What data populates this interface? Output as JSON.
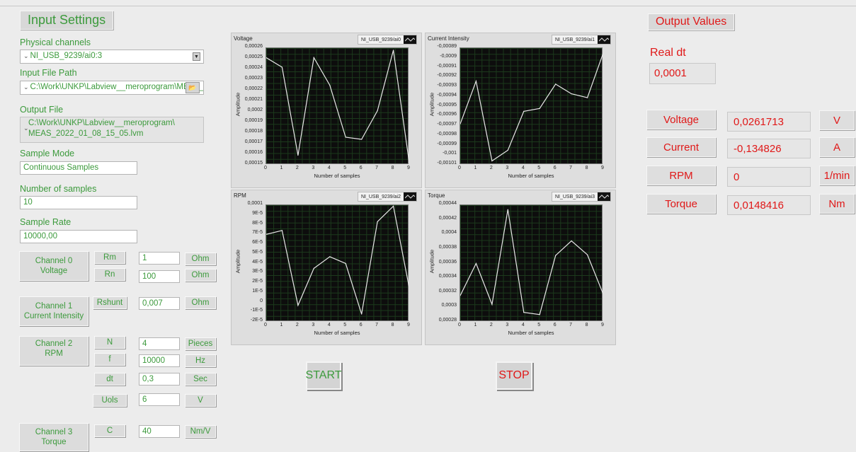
{
  "input": {
    "header": "Input Settings",
    "physical_channels_label": "Physical channels",
    "physical_channels_value": "NI_USB_9239/ai0:3",
    "input_file_path_label": "Input File Path",
    "input_file_path_value": "C:\\Work\\UNKP\\Labview__meroprogram\\MEAS_",
    "output_file_label": "Output File",
    "output_file_line1": "C:\\Work\\UNKP\\Labview__meroprogram\\",
    "output_file_line2": "MEAS_2022_01_08_15_05.lvm",
    "sample_mode_label": "Sample Mode",
    "sample_mode_value": "Continuous Samples",
    "num_samples_label": "Number of samples",
    "num_samples_value": "10",
    "sample_rate_label": "Sample Rate",
    "sample_rate_value": "10000,00"
  },
  "channels": {
    "ch0": {
      "label": "Channel 0\nVoltage",
      "rm": "Rm",
      "rm_value": "1",
      "rm_unit": "Ohm",
      "rn": "Rn",
      "rn_value": "100",
      "rn_unit": "Ohm"
    },
    "ch1": {
      "label": "Channel 1\nCurrent Intensity",
      "rshunt": "Rshunt",
      "rshunt_value": "0,007",
      "rshunt_unit": "Ohm"
    },
    "ch2": {
      "label": "Channel 2\nRPM",
      "n": "N",
      "n_value": "4",
      "n_unit": "Pieces",
      "f": "f",
      "f_value": "10000",
      "f_unit": "Hz",
      "dt": "dt",
      "dt_value": "0,3",
      "dt_unit": "Sec",
      "uols": "Uols",
      "uols_value": "6",
      "uols_unit": "V"
    },
    "ch3": {
      "label": "Channel 3\nTorque",
      "c": "C",
      "c_value": "40",
      "c_unit": "Nm/V"
    }
  },
  "graphs": {
    "voltage": {
      "title": "Voltage",
      "legend": "NI_USB_9239/ai0",
      "ylabel": "Amplitude",
      "xlabel": "Number of samples",
      "yticks": [
        "0,00026",
        "0,00025",
        "0,00024",
        "0,00023",
        "0,00022",
        "0,00021",
        "0,0002",
        "0,00019",
        "0,00018",
        "0,00017",
        "0,00016",
        "0,00015"
      ],
      "xticks": [
        "0",
        "1",
        "2",
        "3",
        "4",
        "5",
        "6",
        "7",
        "8",
        "9"
      ]
    },
    "current": {
      "title": "Current Intensity",
      "legend": "NI_USB_9239/ai1",
      "ylabel": "Amplitude",
      "xlabel": "Number of samples",
      "yticks": [
        "-0,00089",
        "-0,0009",
        "-0,00091",
        "-0,00092",
        "-0,00093",
        "-0,00094",
        "-0,00095",
        "-0,00096",
        "-0,00097",
        "-0,00098",
        "-0,00099",
        "-0,001",
        "-0,00101"
      ],
      "xticks": [
        "0",
        "1",
        "2",
        "3",
        "4",
        "5",
        "6",
        "7",
        "8",
        "9"
      ]
    },
    "rpm": {
      "title": "RPM",
      "legend": "NI_USB_9239/ai2",
      "ylabel": "Amplitude",
      "xlabel": "Number of samples",
      "yticks": [
        "0,0001",
        "9E-5",
        "8E-5",
        "7E-5",
        "6E-5",
        "5E-5",
        "4E-5",
        "3E-5",
        "2E-5",
        "1E-5",
        "0",
        "-1E-5",
        "-2E-5"
      ],
      "xticks": [
        "0",
        "1",
        "2",
        "3",
        "4",
        "5",
        "6",
        "7",
        "8",
        "9"
      ]
    },
    "torque": {
      "title": "Torque",
      "legend": "NI_USB_9239/ai3",
      "ylabel": "Amplitude",
      "xlabel": "Number of samples",
      "yticks": [
        "0,00044",
        "0,00042",
        "0,0004",
        "0,00038",
        "0,00036",
        "0,00034",
        "0,00032",
        "0,0003",
        "0,00028"
      ],
      "xticks": [
        "0",
        "1",
        "2",
        "3",
        "4",
        "5",
        "6",
        "7",
        "8",
        "9"
      ]
    }
  },
  "chart_data": [
    {
      "type": "line",
      "title": "Voltage",
      "xlabel": "Number of samples",
      "ylabel": "Amplitude",
      "x": [
        0,
        1,
        2,
        3,
        4,
        5,
        6,
        7,
        8,
        9
      ],
      "ylim": [
        0.00015,
        0.00026
      ],
      "series": [
        {
          "name": "NI_USB_9239/ai0",
          "values": [
            0.000251,
            0.000242,
            0.000159,
            0.000251,
            0.000225,
            0.000176,
            0.000174,
            0.000201,
            0.000258,
            0.000152
          ]
        }
      ]
    },
    {
      "type": "line",
      "title": "Current Intensity",
      "xlabel": "Number of samples",
      "ylabel": "Amplitude",
      "x": [
        0,
        1,
        2,
        3,
        4,
        5,
        6,
        7,
        8,
        9
      ],
      "ylim": [
        -0.00101,
        -0.00089
      ],
      "series": [
        {
          "name": "NI_USB_9239/ai1",
          "values": [
            -0.000968,
            -0.000924,
            -0.001006,
            -0.000995,
            -0.000955,
            -0.000952,
            -0.000927,
            -0.000937,
            -0.000941,
            -0.000895
          ]
        }
      ]
    },
    {
      "type": "line",
      "title": "RPM",
      "xlabel": "Number of samples",
      "ylabel": "Amplitude",
      "x": [
        0,
        1,
        2,
        3,
        4,
        5,
        6,
        7,
        8,
        9
      ],
      "ylim": [
        -2e-05,
        0.0001
      ],
      "series": [
        {
          "name": "NI_USB_9239/ai2",
          "values": [
            7e-05,
            7.4e-05,
            -3e-06,
            3.5e-05,
            4.7e-05,
            4e-05,
            -1.2e-05,
            8.3e-05,
            9.9e-05,
            1.5e-05
          ]
        }
      ]
    },
    {
      "type": "line",
      "title": "Torque",
      "xlabel": "Number of samples",
      "ylabel": "Amplitude",
      "x": [
        0,
        1,
        2,
        3,
        4,
        5,
        6,
        7,
        8,
        9
      ],
      "ylim": [
        0.00028,
        0.00044
      ],
      "series": [
        {
          "name": "NI_USB_9239/ai3",
          "values": [
            0.000316,
            0.00036,
            0.000304,
            0.000434,
            0.000293,
            0.00029,
            0.000371,
            0.000391,
            0.000372,
            0.000318
          ]
        }
      ]
    }
  ],
  "buttons": {
    "start": "START",
    "stop": "STOP"
  },
  "output": {
    "header": "Output Values",
    "real_dt_label": "Real dt",
    "real_dt_value": "0,0001",
    "voltage_label": "Voltage",
    "voltage_value": "0,0261713",
    "voltage_unit": "V",
    "current_label": "Current",
    "current_value": "-0,134826",
    "current_unit": "A",
    "rpm_label": "RPM",
    "rpm_value": "0",
    "rpm_unit": "1/min",
    "torque_label": "Torque",
    "torque_value": "0,0148416",
    "torque_unit": "Nm"
  },
  "colors": {
    "label_green": "#3c9a3c",
    "value_red": "#e01818",
    "plot_bg": "#0d0d0d",
    "trace": "#e8e8e8"
  }
}
